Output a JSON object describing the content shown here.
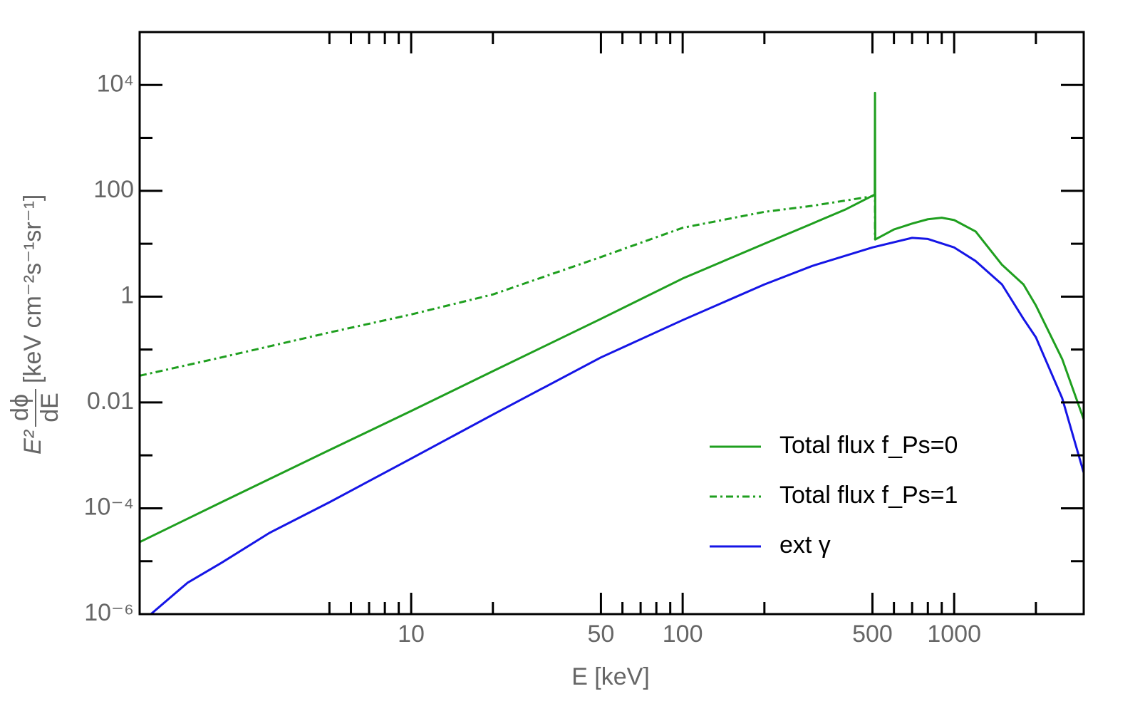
{
  "chart_data": {
    "type": "line",
    "xlabel": "E [keV]",
    "ylabel": {
      "prefix": "E²",
      "numerator": "dϕ",
      "denominator": "dE",
      "units": "[keV cm⁻²s⁻¹sr⁻¹]"
    },
    "xscale": "log",
    "yscale": "log",
    "xlim": [
      1,
      3000
    ],
    "ylim": [
      1e-06,
      100000
    ],
    "xticks": [
      10,
      50,
      100,
      500,
      1000
    ],
    "xminorticks": [
      5,
      6,
      7,
      8,
      9,
      20,
      60,
      70,
      80,
      90,
      200,
      600,
      700,
      800,
      900,
      2000
    ],
    "yticks": [
      {
        "value": 1e-06,
        "label": "10⁻⁶"
      },
      {
        "value": 0.0001,
        "label": "10⁻⁴"
      },
      0.01,
      1,
      100,
      {
        "value": 10000,
        "label": "10⁴"
      }
    ],
    "yminorticks": [
      1e-05,
      0.001,
      0.1,
      10,
      1000
    ],
    "legend": "lower right",
    "series": [
      {
        "name": "Total flux f_Ps=0",
        "color": "#1f9f1f",
        "linestyle": "solid",
        "x": [
          1,
          2,
          5,
          10,
          20,
          50,
          100,
          200,
          300,
          400,
          510,
          511,
          512,
          600,
          700,
          800,
          900,
          1000,
          1200,
          1500,
          1800,
          2000,
          2500,
          3000
        ],
        "values": [
          2.3e-05,
          0.00013,
          0.00126,
          0.0069,
          0.039,
          0.38,
          2.2,
          10,
          24,
          45,
          85,
          7100,
          12,
          18.6,
          24,
          29,
          31,
          28,
          17,
          4.0,
          1.7,
          0.68,
          0.066,
          0.0048
        ]
      },
      {
        "name": "Total flux f_Ps=1",
        "color": "#1f9f1f",
        "linestyle": "dashdot",
        "x": [
          1,
          2,
          5,
          10,
          20,
          50,
          100,
          200,
          300,
          500,
          511,
          511
        ],
        "values": [
          0.032,
          0.071,
          0.21,
          0.46,
          1.1,
          5.6,
          20,
          40,
          52,
          79,
          85,
          12
        ]
      },
      {
        "name": "ext γ",
        "color": "#1515e6",
        "linestyle": "solid",
        "x": [
          1.1,
          1.5,
          2,
          3,
          5,
          10,
          20,
          50,
          100,
          200,
          300,
          500,
          700,
          800,
          1000,
          1200,
          1500,
          1800,
          2000,
          2500,
          3000
        ],
        "values": [
          1e-06,
          3.9e-06,
          9.3e-06,
          3.4e-05,
          0.00013,
          0.00087,
          0.0059,
          0.071,
          0.36,
          1.7,
          3.8,
          8.5,
          12.9,
          12.3,
          8.5,
          4.7,
          1.7,
          0.38,
          0.17,
          0.012,
          0.00047
        ]
      }
    ]
  }
}
